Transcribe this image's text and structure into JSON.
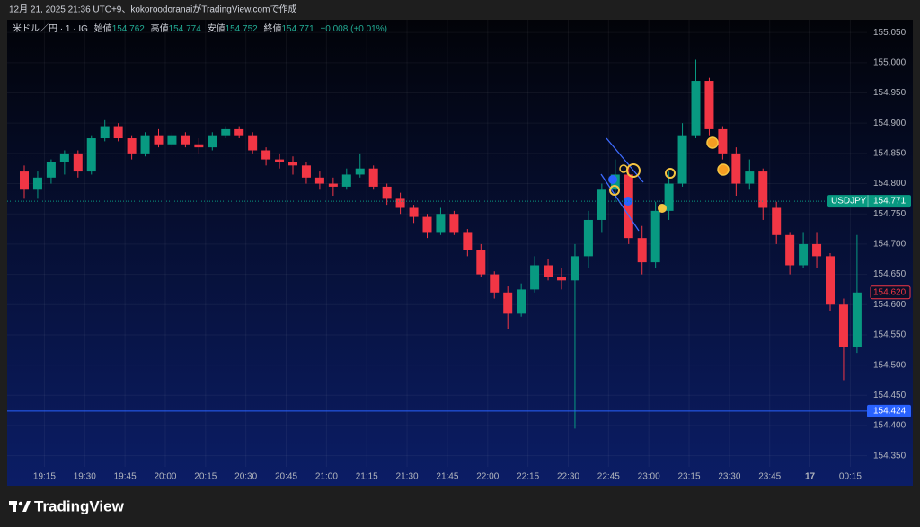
{
  "header": "12月 21, 2025 21:36 UTC+9、kokoroodoranaiがTradingView.comで作成",
  "footer": "TradingView",
  "chart_data": {
    "type": "candlestick",
    "legend": {
      "symbol": "米ドル／円 · 1 · IG",
      "open_label": "始値",
      "open": 154.762,
      "high_label": "高値",
      "high": 154.774,
      "low_label": "安値",
      "low": 154.752,
      "close_label": "終値",
      "close": 154.771,
      "change": "+0.008 (+0.01%)"
    },
    "up_color": "#089981",
    "down_color": "#f23645",
    "x": [
      "19:05",
      "19:10",
      "19:15",
      "19:20",
      "19:25",
      "19:30",
      "19:35",
      "19:40",
      "19:45",
      "19:50",
      "19:55",
      "20:00",
      "20:05",
      "20:10",
      "20:15",
      "20:20",
      "20:25",
      "20:30",
      "20:35",
      "20:40",
      "20:45",
      "20:50",
      "20:55",
      "21:00",
      "21:05",
      "21:10",
      "21:15",
      "21:20",
      "21:25",
      "21:30",
      "21:35",
      "21:40",
      "21:45",
      "21:50",
      "21:55",
      "22:00",
      "22:05",
      "22:10",
      "22:15",
      "22:20",
      "22:25",
      "22:30",
      "22:35",
      "22:40",
      "22:45",
      "22:50",
      "22:55",
      "23:00",
      "23:05",
      "23:10",
      "23:15",
      "23:20",
      "23:25",
      "23:30",
      "23:35",
      "23:40",
      "23:45",
      "23:50",
      "23:55",
      "00:00",
      "00:05",
      "00:10",
      "00:15"
    ],
    "open": [
      154.82,
      154.79,
      154.81,
      154.835,
      154.85,
      154.82,
      154.875,
      154.895,
      154.875,
      154.85,
      154.88,
      154.865,
      154.88,
      154.865,
      154.86,
      154.88,
      154.89,
      154.88,
      154.855,
      154.84,
      154.835,
      154.83,
      154.81,
      154.8,
      154.795,
      154.815,
      154.825,
      154.795,
      154.775,
      154.76,
      154.745,
      154.72,
      154.75,
      154.72,
      154.69,
      154.65,
      154.62,
      154.585,
      154.625,
      154.665,
      154.645,
      154.64,
      154.68,
      154.74,
      154.79,
      154.815,
      154.71,
      154.67,
      154.755,
      154.8,
      154.88,
      154.97,
      154.89,
      154.85,
      154.8,
      154.82,
      154.76,
      154.715,
      154.665,
      154.7,
      154.68,
      154.6,
      154.53
    ],
    "high": [
      154.83,
      154.82,
      154.84,
      154.855,
      154.855,
      154.88,
      154.905,
      154.9,
      154.88,
      154.885,
      154.89,
      154.885,
      154.885,
      154.875,
      154.885,
      154.895,
      154.895,
      154.885,
      154.86,
      154.85,
      154.845,
      154.835,
      154.82,
      154.81,
      154.825,
      154.85,
      154.83,
      154.8,
      154.785,
      154.765,
      154.75,
      154.76,
      154.755,
      154.725,
      154.7,
      154.655,
      154.63,
      154.635,
      154.68,
      154.675,
      154.66,
      154.7,
      154.755,
      154.8,
      154.84,
      154.83,
      154.73,
      154.77,
      154.82,
      154.9,
      155.005,
      154.975,
      154.895,
      154.86,
      154.84,
      154.825,
      154.77,
      154.72,
      154.72,
      154.72,
      154.685,
      154.61,
      154.715
    ],
    "low": [
      154.775,
      154.775,
      154.8,
      154.815,
      154.81,
      154.815,
      154.87,
      154.87,
      154.84,
      154.845,
      154.86,
      154.86,
      154.86,
      154.85,
      154.855,
      154.875,
      154.875,
      154.85,
      154.83,
      154.825,
      154.815,
      154.8,
      154.79,
      154.78,
      154.79,
      154.81,
      154.79,
      154.765,
      154.75,
      154.735,
      154.71,
      154.715,
      154.715,
      154.68,
      154.645,
      154.61,
      154.56,
      154.58,
      154.62,
      154.64,
      154.625,
      154.395,
      154.66,
      154.72,
      154.77,
      154.7,
      154.65,
      154.66,
      154.74,
      154.795,
      154.875,
      154.88,
      154.84,
      154.78,
      154.79,
      154.74,
      154.7,
      154.65,
      154.66,
      154.66,
      154.59,
      154.475,
      154.52
    ],
    "close": [
      154.79,
      154.81,
      154.835,
      154.85,
      154.82,
      154.875,
      154.895,
      154.875,
      154.85,
      154.88,
      154.865,
      154.88,
      154.865,
      154.86,
      154.88,
      154.89,
      154.88,
      154.855,
      154.84,
      154.835,
      154.83,
      154.81,
      154.8,
      154.795,
      154.815,
      154.825,
      154.795,
      154.775,
      154.76,
      154.745,
      154.72,
      154.75,
      154.72,
      154.69,
      154.65,
      154.62,
      154.585,
      154.625,
      154.665,
      154.645,
      154.64,
      154.68,
      154.74,
      154.79,
      154.815,
      154.71,
      154.67,
      154.755,
      154.8,
      154.88,
      154.97,
      154.89,
      154.85,
      154.8,
      154.82,
      154.76,
      154.715,
      154.665,
      154.7,
      154.68,
      154.6,
      154.53,
      154.62
    ],
    "xticks": [
      "19:15",
      "19:30",
      "19:45",
      "20:00",
      "20:15",
      "20:30",
      "20:45",
      "21:00",
      "21:15",
      "21:30",
      "21:45",
      "22:00",
      "22:15",
      "22:30",
      "22:45",
      "23:00",
      "23:15",
      "23:30",
      "23:45",
      {
        "value": "00:00",
        "label": "17"
      },
      "00:15"
    ],
    "ylim": [
      154.302,
      155.071
    ],
    "yticks": [
      {
        "value": 154.35,
        "label": "154.350"
      },
      {
        "value": 154.4,
        "label": "154.400"
      },
      {
        "value": 154.45,
        "label": "154.450"
      },
      {
        "value": 154.5,
        "label": "154.500"
      },
      {
        "value": 154.55,
        "label": "154.550"
      },
      {
        "value": 154.6,
        "label": "154.600"
      },
      {
        "value": 154.65,
        "label": "154.650"
      },
      {
        "value": 154.7,
        "label": "154.700"
      },
      {
        "value": 154.75,
        "label": "154.750"
      },
      {
        "value": 154.8,
        "label": "154.800"
      },
      {
        "value": 154.85,
        "label": "154.850"
      },
      {
        "value": 154.9,
        "label": "154.900"
      },
      {
        "value": 154.95,
        "label": "154.950"
      },
      {
        "value": 155.0,
        "label": "155.000"
      },
      {
        "value": 155.05,
        "label": "155.050"
      }
    ],
    "grid": true,
    "price_line": {
      "name": "USDJPY",
      "value": 154.771,
      "color": "#089981"
    },
    "last_label": {
      "value": 154.62,
      "label": "154.620",
      "color": "#f23645"
    },
    "horizontal_line": {
      "value": 154.424,
      "color": "#2962ff"
    }
  }
}
